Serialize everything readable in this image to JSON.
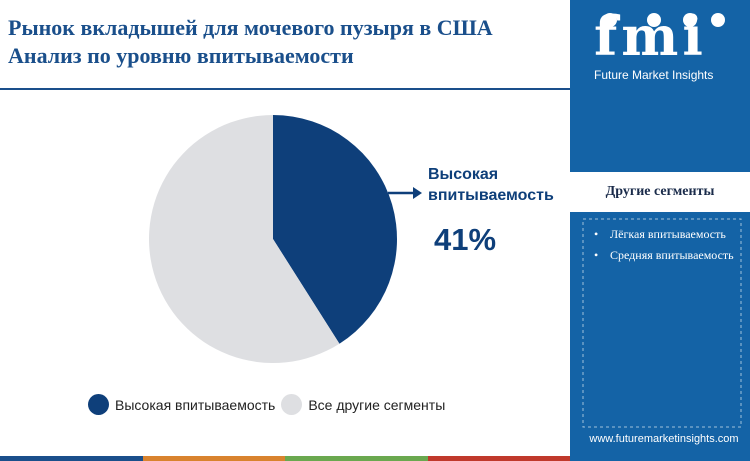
{
  "header": {
    "title": "Рынок вкладышей для мочевого пузыря в США Анализ по уровню впитываемости"
  },
  "chart_data": {
    "type": "pie",
    "categories": [
      "Высокая впитываемость",
      "Все другие сегменты"
    ],
    "values": [
      41,
      59
    ],
    "colors": [
      "#0e3f7a",
      "#dedfe2"
    ],
    "callout": {
      "label": "Высокая впитываемость",
      "value_text": "41%"
    },
    "legend_position": "bottom"
  },
  "legend": {
    "items": [
      {
        "label": "Высокая впитываемость",
        "color": "#0e3f7a"
      },
      {
        "label": "Все другие сегменты",
        "color": "#dedfe2"
      }
    ]
  },
  "sidebar": {
    "brand": "fmi",
    "brand_sub": "Future Market Insights",
    "segments_title": "Другие сегменты",
    "segments": [
      "Лёгкая впитываемость",
      "Средняя впитываемость"
    ],
    "website": "www.futuremarketinsights.com"
  },
  "colors": {
    "accent_blue": "#1463a6",
    "dark_blue": "#0e3f7a",
    "gray": "#dedfe2",
    "bar_colors": [
      "#1a4f8b",
      "#d9832e",
      "#6aa84f",
      "#c0392b"
    ]
  }
}
